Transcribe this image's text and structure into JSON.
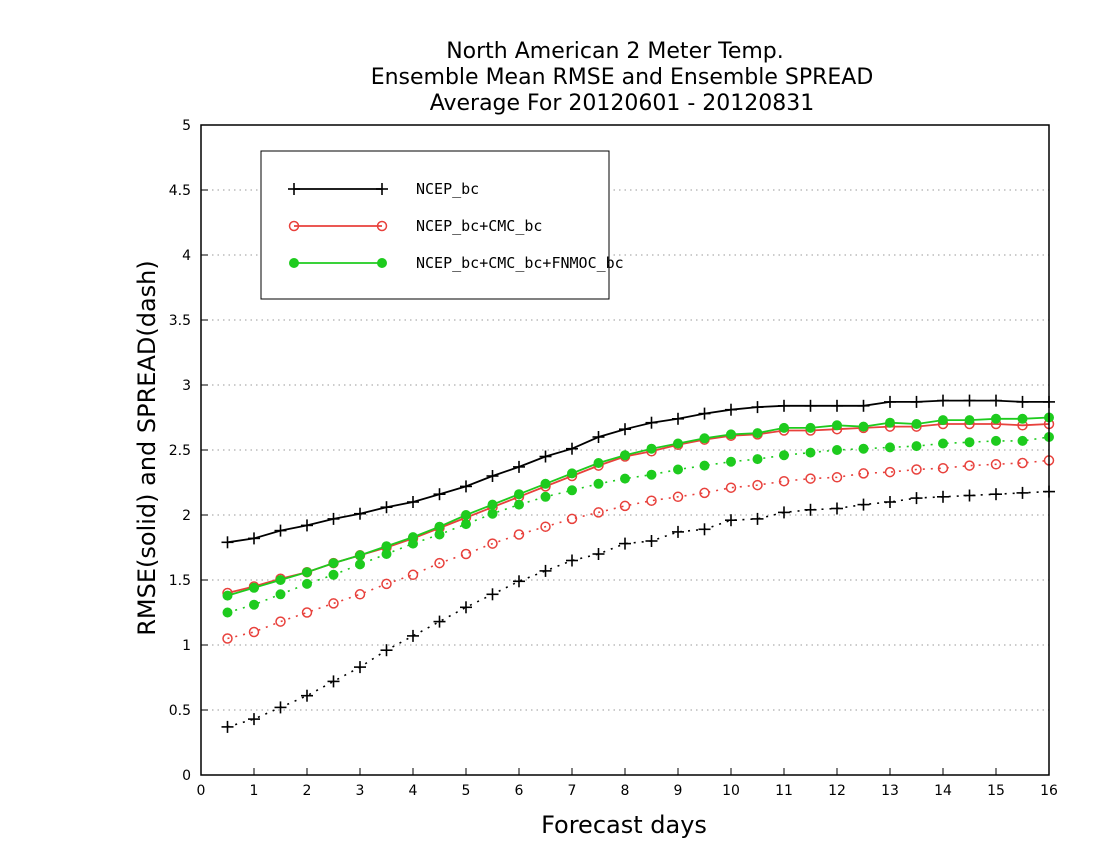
{
  "chart_data": {
    "type": "line",
    "title": [
      "North American 2 Meter Temp.",
      "Ensemble Mean RMSE and Ensemble SPREAD",
      "Average For 20120601 - 20120831"
    ],
    "xlabel": "Forecast days",
    "ylabel": "RMSE(solid) and SPREAD(dash)",
    "xlim": [
      0,
      16
    ],
    "ylim": [
      0,
      5
    ],
    "x_ticks": [
      "0",
      "1",
      "2",
      "3",
      "4",
      "5",
      "6",
      "7",
      "8",
      "9",
      "10",
      "11",
      "12",
      "13",
      "14",
      "15",
      "16"
    ],
    "y_ticks": [
      "0",
      "0.5",
      "1",
      "1.5",
      "2",
      "2.5",
      "3",
      "3.5",
      "4",
      "4.5",
      "5"
    ],
    "grid": true,
    "legend_position": "top-left",
    "x": [
      0.5,
      1,
      1.5,
      2,
      2.5,
      3,
      3.5,
      4,
      4.5,
      5,
      5.5,
      6,
      6.5,
      7,
      7.5,
      8,
      8.5,
      9,
      9.5,
      10,
      10.5,
      11,
      11.5,
      12,
      12.5,
      13,
      13.5,
      14,
      14.5,
      15,
      15.5,
      16
    ],
    "series": [
      {
        "name": "NCEP_bc",
        "color": "#000000",
        "marker": "plus",
        "rmse": [
          1.79,
          1.82,
          1.88,
          1.92,
          1.97,
          2.01,
          2.06,
          2.1,
          2.16,
          2.22,
          2.3,
          2.37,
          2.45,
          2.51,
          2.6,
          2.66,
          2.71,
          2.74,
          2.78,
          2.81,
          2.83,
          2.84,
          2.84,
          2.84,
          2.84,
          2.87,
          2.87,
          2.88,
          2.88,
          2.88,
          2.87,
          2.87
        ],
        "spread": [
          0.37,
          0.43,
          0.52,
          0.61,
          0.72,
          0.83,
          0.96,
          1.07,
          1.18,
          1.29,
          1.39,
          1.49,
          1.57,
          1.65,
          1.7,
          1.78,
          1.8,
          1.87,
          1.89,
          1.96,
          1.97,
          2.02,
          2.04,
          2.05,
          2.08,
          2.1,
          2.13,
          2.14,
          2.15,
          2.16,
          2.17,
          2.18
        ]
      },
      {
        "name": "NCEP_bc+CMC_bc",
        "color": "#e8413c",
        "marker": "open-circle",
        "rmse": [
          1.4,
          1.45,
          1.51,
          1.56,
          1.63,
          1.69,
          1.75,
          1.82,
          1.9,
          1.98,
          2.06,
          2.14,
          2.22,
          2.3,
          2.38,
          2.45,
          2.49,
          2.54,
          2.58,
          2.61,
          2.62,
          2.65,
          2.65,
          2.66,
          2.67,
          2.68,
          2.68,
          2.7,
          2.7,
          2.7,
          2.69,
          2.7
        ],
        "spread": [
          1.05,
          1.1,
          1.18,
          1.25,
          1.32,
          1.39,
          1.47,
          1.54,
          1.63,
          1.7,
          1.78,
          1.85,
          1.91,
          1.97,
          2.02,
          2.07,
          2.11,
          2.14,
          2.17,
          2.21,
          2.23,
          2.26,
          2.28,
          2.29,
          2.32,
          2.33,
          2.35,
          2.36,
          2.38,
          2.39,
          2.4,
          2.42
        ]
      },
      {
        "name": "NCEP_bc+CMC_bc+FNMOC_bc",
        "color": "#1ecb1e",
        "marker": "filled-circle",
        "rmse": [
          1.38,
          1.44,
          1.5,
          1.56,
          1.63,
          1.69,
          1.76,
          1.83,
          1.91,
          2.0,
          2.08,
          2.16,
          2.24,
          2.32,
          2.4,
          2.46,
          2.51,
          2.55,
          2.59,
          2.62,
          2.63,
          2.67,
          2.67,
          2.69,
          2.68,
          2.71,
          2.7,
          2.73,
          2.73,
          2.74,
          2.74,
          2.75
        ],
        "spread": [
          1.25,
          1.31,
          1.39,
          1.47,
          1.54,
          1.62,
          1.7,
          1.78,
          1.85,
          1.93,
          2.01,
          2.08,
          2.14,
          2.19,
          2.24,
          2.28,
          2.31,
          2.35,
          2.38,
          2.41,
          2.43,
          2.46,
          2.48,
          2.5,
          2.51,
          2.52,
          2.53,
          2.55,
          2.56,
          2.57,
          2.57,
          2.6
        ]
      }
    ]
  }
}
